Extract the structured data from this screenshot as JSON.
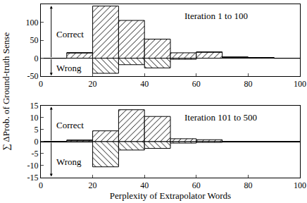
{
  "chart_data": {
    "type": "bar",
    "x_label": "Perplexity of Extrapolator Words",
    "y_label": "∑ ΔProb. of Ground-truth Sense",
    "bins": [
      0,
      10,
      20,
      30,
      40,
      50,
      60,
      70,
      80,
      90,
      100
    ],
    "xlim": [
      0,
      100
    ],
    "xticks": [
      0,
      20,
      40,
      60,
      80,
      100
    ],
    "stacked": true,
    "grid": false,
    "panels": [
      {
        "title": "Iteration 1 to 100",
        "ylim": [
          -50,
          150
        ],
        "yticks": [
          -50,
          0,
          50,
          100,
          150
        ],
        "series": [
          {
            "name": "Correct",
            "color": "#000000",
            "marker": "forward_hatch",
            "values": [
              0,
              15,
              145,
              105,
              53,
              15,
              17,
              3,
              2,
              0
            ]
          },
          {
            "name": "Wrong",
            "color": "#000000",
            "marker": "back_hatch",
            "values": [
              0,
              0,
              -42,
              -18,
              -27,
              -3,
              0,
              0,
              0,
              0
            ]
          }
        ]
      },
      {
        "title": "Iteration 101 to 500",
        "ylim": [
          -15,
          15
        ],
        "yticks": [
          -15,
          -10,
          -5,
          0,
          5,
          10,
          15
        ],
        "series": [
          {
            "name": "Correct",
            "color": "#000000",
            "marker": "forward_hatch",
            "values": [
              0,
              0.6,
              4.5,
              13.3,
              10.5,
              1.2,
              0.8,
              0,
              0,
              0
            ]
          },
          {
            "name": "Wrong",
            "color": "#000000",
            "marker": "back_hatch",
            "values": [
              0,
              0,
              -10.5,
              -3.5,
              -2.8,
              -0.6,
              -0.3,
              0,
              0,
              0
            ]
          }
        ]
      }
    ]
  }
}
